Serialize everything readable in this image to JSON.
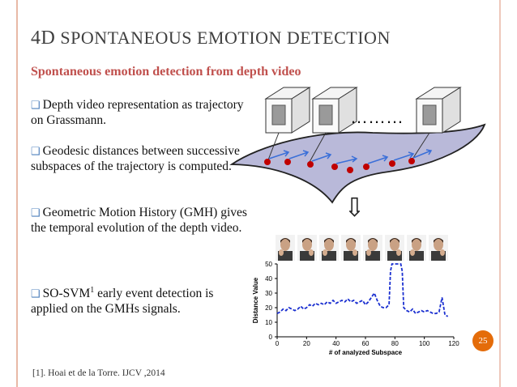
{
  "slide": {
    "title_first": "4D",
    "title_rest": "SPONTANEOUS EMOTION DETECTION",
    "subtitle": "Spontaneous emotion detection from depth video",
    "bullets": [
      "Depth video representation as trajectory on Grassmann.",
      "Geodesic distances between successive subspaces of the trajectory is computed.",
      "Geometric Motion History (GMH) gives the temporal evolution of the depth video.",
      "SO-SVM"
    ],
    "bullet4_sup": "1",
    "bullet4_rest": "early event detection is applied on the GMHs signals.",
    "footnote": "[1]. Hoai et de la Torre. IJCV ,2014",
    "page_number": "25",
    "ellipsis": "………",
    "arrow_down": "⇩"
  },
  "colors": {
    "title": "#3f3f3f",
    "subtitle": "#c0504d",
    "bullet_box": "#4f81bd",
    "manifold_fill": "#b9b9d9",
    "trajectory_points": "#c00000",
    "tangent_arrows": "#3a6fd8",
    "curve": "#1a2fd0",
    "badge": "#e46c0a"
  },
  "chart_data": {
    "type": "line",
    "xlabel": "# of analyzed Subspace",
    "ylabel": "Distance Value",
    "xlim": [
      0,
      120
    ],
    "ylim": [
      0,
      50
    ],
    "xticks": [
      0,
      20,
      40,
      60,
      80,
      100,
      120
    ],
    "yticks": [
      0,
      10,
      20,
      30,
      40,
      50
    ],
    "grid": false,
    "series": [
      {
        "x": [
          0,
          2,
          4,
          6,
          8,
          10,
          12,
          14,
          16,
          18,
          20,
          22,
          24,
          26,
          28,
          30,
          32,
          34,
          36,
          38,
          40,
          42,
          44,
          46,
          48,
          50,
          52,
          54,
          56,
          58,
          60,
          62,
          64,
          66,
          68,
          70,
          72,
          74,
          76,
          77,
          78,
          80,
          82,
          84,
          85,
          86,
          88,
          90,
          92,
          94,
          96,
          98,
          100,
          102,
          104,
          106,
          108,
          110,
          112,
          114,
          116
        ],
        "y": [
          16,
          17,
          19,
          18,
          20,
          19,
          18,
          19,
          21,
          19,
          20,
          22,
          21,
          23,
          22,
          23,
          22,
          24,
          23,
          25,
          23,
          24,
          25,
          24,
          26,
          24,
          25,
          23,
          24,
          25,
          22,
          24,
          27,
          30,
          25,
          21,
          20,
          20,
          22,
          45,
          50,
          50,
          50,
          50,
          45,
          20,
          18,
          17,
          19,
          16,
          17,
          18,
          17,
          18,
          17,
          16,
          16,
          17,
          27,
          15,
          14
        ]
      }
    ]
  }
}
